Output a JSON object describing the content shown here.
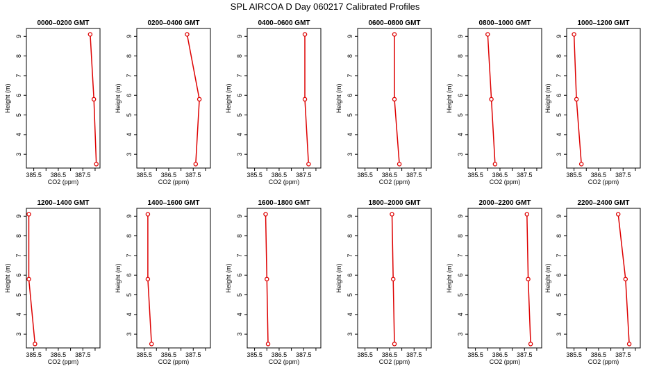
{
  "figure": {
    "title": "SPL AIRCOA D  Day 060217  Calibrated Profiles"
  },
  "colors": {
    "series": "#dd0000",
    "axis": "#000000"
  },
  "chart_data": [
    {
      "type": "line",
      "title": "0000–0200 GMT",
      "xlabel": "CO2 (ppm)",
      "ylabel": "Height (m)",
      "xlim": [
        385.2,
        388.2
      ],
      "ylim": [
        2.3,
        9.4
      ],
      "xticks": [
        "385.5",
        "386.5",
        "387.5"
      ],
      "yticks": [
        "3",
        "4",
        "5",
        "6",
        "7",
        "8",
        "9"
      ],
      "x": [
        387.8,
        387.95,
        388.05
      ],
      "y": [
        9.1,
        5.8,
        2.5
      ]
    },
    {
      "type": "line",
      "title": "0200–0400 GMT",
      "xlabel": "CO2 (ppm)",
      "ylabel": "Height (m)",
      "xlim": [
        385.2,
        388.2
      ],
      "ylim": [
        2.3,
        9.4
      ],
      "xticks": [
        "385.5",
        "386.5",
        "387.5"
      ],
      "yticks": [
        "3",
        "4",
        "5",
        "6",
        "7",
        "8",
        "9"
      ],
      "x": [
        387.25,
        387.75,
        387.6
      ],
      "y": [
        9.1,
        5.8,
        2.5
      ]
    },
    {
      "type": "line",
      "title": "0400–0600 GMT",
      "xlabel": "CO2 (ppm)",
      "ylabel": "Height (m)",
      "xlim": [
        385.2,
        388.2
      ],
      "ylim": [
        2.3,
        9.4
      ],
      "xticks": [
        "385.5",
        "386.5",
        "387.5"
      ],
      "yticks": [
        "3",
        "4",
        "5",
        "6",
        "7",
        "8",
        "9"
      ],
      "x": [
        387.55,
        387.55,
        387.7
      ],
      "y": [
        9.1,
        5.8,
        2.5
      ]
    },
    {
      "type": "line",
      "title": "0600–0800 GMT",
      "xlabel": "CO2 (ppm)",
      "ylabel": "Height (m)",
      "xlim": [
        385.2,
        388.2
      ],
      "ylim": [
        2.3,
        9.4
      ],
      "xticks": [
        "385.5",
        "386.5",
        "387.5"
      ],
      "yticks": [
        "3",
        "4",
        "5",
        "6",
        "7",
        "8",
        "9"
      ],
      "x": [
        386.7,
        386.7,
        386.9
      ],
      "y": [
        9.1,
        5.8,
        2.5
      ]
    },
    {
      "type": "line",
      "title": "0800–1000 GMT",
      "xlabel": "CO2 (ppm)",
      "ylabel": "Height (m)",
      "xlim": [
        385.2,
        388.2
      ],
      "ylim": [
        2.3,
        9.4
      ],
      "xticks": [
        "385.5",
        "386.5",
        "387.5"
      ],
      "yticks": [
        "3",
        "4",
        "5",
        "6",
        "7",
        "8",
        "9"
      ],
      "x": [
        386.0,
        386.15,
        386.3
      ],
      "y": [
        9.1,
        5.8,
        2.5
      ]
    },
    {
      "type": "line",
      "title": "1000–1200 GMT",
      "xlabel": "CO2 (ppm)",
      "ylabel": "Height (m)",
      "xlim": [
        385.2,
        388.2
      ],
      "ylim": [
        2.3,
        9.4
      ],
      "xticks": [
        "385.5",
        "386.5",
        "387.5"
      ],
      "yticks": [
        "3",
        "4",
        "5",
        "6",
        "7",
        "8",
        "9"
      ],
      "x": [
        385.5,
        385.6,
        385.8
      ],
      "y": [
        9.1,
        5.8,
        2.5
      ]
    },
    {
      "type": "line",
      "title": "1200–1400 GMT",
      "xlabel": "CO2 (ppm)",
      "ylabel": "Height (m)",
      "xlim": [
        385.2,
        388.2
      ],
      "ylim": [
        2.3,
        9.4
      ],
      "xticks": [
        "385.5",
        "386.5",
        "387.5"
      ],
      "yticks": [
        "3",
        "4",
        "5",
        "6",
        "7",
        "8",
        "9"
      ],
      "x": [
        385.3,
        385.3,
        385.55
      ],
      "y": [
        9.1,
        5.8,
        2.5
      ]
    },
    {
      "type": "line",
      "title": "1400–1600 GMT",
      "xlabel": "CO2 (ppm)",
      "ylabel": "Height (m)",
      "xlim": [
        385.2,
        388.2
      ],
      "ylim": [
        2.3,
        9.4
      ],
      "xticks": [
        "385.5",
        "386.5",
        "387.5"
      ],
      "yticks": [
        "3",
        "4",
        "5",
        "6",
        "7",
        "8",
        "9"
      ],
      "x": [
        385.65,
        385.65,
        385.8
      ],
      "y": [
        9.1,
        5.8,
        2.5
      ]
    },
    {
      "type": "line",
      "title": "1600–1800 GMT",
      "xlabel": "CO2 (ppm)",
      "ylabel": "Height (m)",
      "xlim": [
        385.2,
        388.2
      ],
      "ylim": [
        2.3,
        9.4
      ],
      "xticks": [
        "385.5",
        "386.5",
        "387.5"
      ],
      "yticks": [
        "3",
        "4",
        "5",
        "6",
        "7",
        "8",
        "9"
      ],
      "x": [
        385.95,
        386.0,
        386.05
      ],
      "y": [
        9.1,
        5.8,
        2.5
      ]
    },
    {
      "type": "line",
      "title": "1800–2000 GMT",
      "xlabel": "CO2 (ppm)",
      "ylabel": "Height (m)",
      "xlim": [
        385.2,
        388.2
      ],
      "ylim": [
        2.3,
        9.4
      ],
      "xticks": [
        "385.5",
        "386.5",
        "387.5"
      ],
      "yticks": [
        "3",
        "4",
        "5",
        "6",
        "7",
        "8",
        "9"
      ],
      "x": [
        386.6,
        386.65,
        386.7
      ],
      "y": [
        9.1,
        5.8,
        2.5
      ]
    },
    {
      "type": "line",
      "title": "2000–2200 GMT",
      "xlabel": "CO2 (ppm)",
      "ylabel": "Height (m)",
      "xlim": [
        385.2,
        388.2
      ],
      "ylim": [
        2.3,
        9.4
      ],
      "xticks": [
        "385.5",
        "386.5",
        "387.5"
      ],
      "yticks": [
        "3",
        "4",
        "5",
        "6",
        "7",
        "8",
        "9"
      ],
      "x": [
        387.6,
        387.65,
        387.75
      ],
      "y": [
        9.1,
        5.8,
        2.5
      ]
    },
    {
      "type": "line",
      "title": "2200–2400 GMT",
      "xlabel": "CO2 (ppm)",
      "ylabel": "Height (m)",
      "xlim": [
        385.2,
        388.2
      ],
      "ylim": [
        2.3,
        9.4
      ],
      "xticks": [
        "385.5",
        "386.5",
        "387.5"
      ],
      "yticks": [
        "3",
        "4",
        "5",
        "6",
        "7",
        "8",
        "9"
      ],
      "x": [
        387.3,
        387.6,
        387.75
      ],
      "y": [
        9.1,
        5.8,
        2.5
      ]
    }
  ]
}
